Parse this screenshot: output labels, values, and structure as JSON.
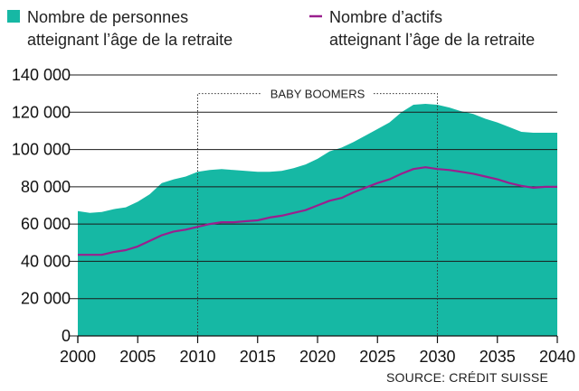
{
  "chart_data": {
    "type": "area",
    "legend": [
      {
        "line1": "Nombre de personnes",
        "line2": "atteignant l’âge de la retraite",
        "color": "#16b8a4",
        "marker": "square"
      },
      {
        "line1": "Nombre d’actifs",
        "line2": "atteignant l’âge de la retraite",
        "color": "#9a1f8e",
        "marker": "line"
      }
    ],
    "ylim": [
      0,
      140000
    ],
    "xlim": [
      2000,
      2040
    ],
    "yticks": [
      0,
      20000,
      40000,
      60000,
      80000,
      100000,
      120000,
      140000
    ],
    "ytick_labels": [
      "0",
      "20 000",
      "40 000",
      "60 000",
      "80 000",
      "100 000",
      "120 000",
      "140 000"
    ],
    "xticks": [
      2000,
      2005,
      2010,
      2015,
      2020,
      2025,
      2030,
      2035,
      2040
    ],
    "xtick_labels": [
      "2000",
      "2005",
      "2010",
      "2015",
      "2020",
      "2025",
      "2030",
      "2035",
      "2040"
    ],
    "grid": "horizontal",
    "annotation": {
      "label": "BABY BOOMERS",
      "x_start": 2010,
      "x_end": 2030,
      "y_top": 130000
    },
    "source": "SOURCE: CRÉDIT SUISSE",
    "series": [
      {
        "kind": "area",
        "color": "#16b8a4",
        "x": [
          2000,
          2001,
          2002,
          2003,
          2004,
          2005,
          2006,
          2007,
          2008,
          2009,
          2010,
          2011,
          2012,
          2013,
          2014,
          2015,
          2016,
          2017,
          2018,
          2019,
          2020,
          2021,
          2022,
          2023,
          2024,
          2025,
          2026,
          2027,
          2028,
          2029,
          2030,
          2031,
          2032,
          2033,
          2034,
          2035,
          2036,
          2037,
          2038,
          2039,
          2040
        ],
        "values": [
          67000,
          66000,
          66500,
          68000,
          69000,
          72000,
          76000,
          82000,
          84000,
          85500,
          88000,
          89000,
          89500,
          89000,
          88500,
          88000,
          88000,
          88500,
          90000,
          92000,
          95000,
          99000,
          101000,
          104000,
          107500,
          111000,
          114500,
          120000,
          124000,
          124500,
          124000,
          122500,
          120500,
          119000,
          116500,
          114500,
          112000,
          109500,
          109000,
          109000,
          109000
        ]
      },
      {
        "kind": "line",
        "color": "#9a1f8e",
        "x": [
          2000,
          2001,
          2002,
          2003,
          2004,
          2005,
          2006,
          2007,
          2008,
          2009,
          2010,
          2011,
          2012,
          2013,
          2014,
          2015,
          2016,
          2017,
          2018,
          2019,
          2020,
          2021,
          2022,
          2023,
          2024,
          2025,
          2026,
          2027,
          2028,
          2029,
          2030,
          2031,
          2032,
          2033,
          2034,
          2035,
          2036,
          2037,
          2038,
          2039,
          2040
        ],
        "values": [
          43500,
          43500,
          43500,
          45000,
          46000,
          48000,
          51000,
          54000,
          56000,
          57000,
          58500,
          60000,
          61000,
          61000,
          61500,
          62000,
          63500,
          64500,
          66000,
          67500,
          70000,
          72500,
          74000,
          77000,
          79500,
          82000,
          84000,
          87000,
          89500,
          90500,
          89500,
          89000,
          88000,
          87000,
          85500,
          84000,
          82000,
          80500,
          79500,
          80000,
          80000
        ]
      }
    ]
  }
}
